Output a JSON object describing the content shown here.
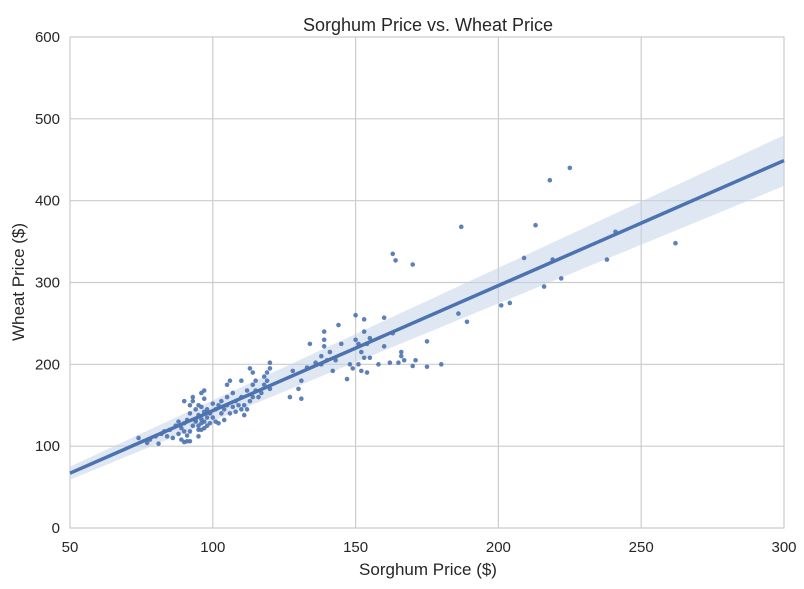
{
  "chart_data": {
    "type": "scatter",
    "title": "Sorghum Price vs. Wheat Price",
    "xlabel": "Sorghum Price ($)",
    "ylabel": "Wheat Price ($)",
    "xlim": [
      50,
      300
    ],
    "ylim": [
      0,
      600
    ],
    "xticks": [
      "50",
      "100",
      "150",
      "200",
      "250",
      "300"
    ],
    "yticks": [
      "0",
      "100",
      "200",
      "300",
      "400",
      "500",
      "600"
    ],
    "grid": true,
    "colors": {
      "points": "#4c72b0",
      "line": "#4c72b0",
      "band": "#c5d3ea",
      "grid": "#cccccc"
    },
    "points": [
      [
        74,
        110
      ],
      [
        77,
        104
      ],
      [
        78,
        108
      ],
      [
        80,
        112
      ],
      [
        81,
        103
      ],
      [
        82,
        115
      ],
      [
        83,
        118
      ],
      [
        84,
        112
      ],
      [
        85,
        120
      ],
      [
        86,
        110
      ],
      [
        87,
        125
      ],
      [
        88,
        115
      ],
      [
        88,
        130
      ],
      [
        89,
        108
      ],
      [
        89,
        122
      ],
      [
        90,
        105
      ],
      [
        90,
        118
      ],
      [
        90,
        128
      ],
      [
        90,
        155
      ],
      [
        91,
        106
      ],
      [
        91,
        113
      ],
      [
        91,
        132
      ],
      [
        92,
        106
      ],
      [
        92,
        118
      ],
      [
        92,
        140
      ],
      [
        92,
        150
      ],
      [
        93,
        125
      ],
      [
        93,
        155
      ],
      [
        93,
        160
      ],
      [
        94,
        132
      ],
      [
        94,
        145
      ],
      [
        94,
        130
      ],
      [
        95,
        112
      ],
      [
        95,
        120
      ],
      [
        95,
        125
      ],
      [
        95,
        138
      ],
      [
        95,
        150
      ],
      [
        96,
        120
      ],
      [
        96,
        128
      ],
      [
        96,
        133
      ],
      [
        96,
        148
      ],
      [
        96,
        165
      ],
      [
        97,
        122
      ],
      [
        97,
        130
      ],
      [
        97,
        142
      ],
      [
        97,
        158
      ],
      [
        97,
        168
      ],
      [
        98,
        125
      ],
      [
        98,
        135
      ],
      [
        98,
        145
      ],
      [
        99,
        128
      ],
      [
        99,
        140
      ],
      [
        100,
        135
      ],
      [
        100,
        152
      ],
      [
        101,
        130
      ],
      [
        101,
        145
      ],
      [
        102,
        128
      ],
      [
        102,
        150
      ],
      [
        103,
        140
      ],
      [
        103,
        155
      ],
      [
        104,
        132
      ],
      [
        104,
        145
      ],
      [
        105,
        150
      ],
      [
        105,
        160
      ],
      [
        105,
        175
      ],
      [
        106,
        140
      ],
      [
        106,
        180
      ],
      [
        107,
        148
      ],
      [
        107,
        165
      ],
      [
        108,
        142
      ],
      [
        108,
        155
      ],
      [
        109,
        150
      ],
      [
        110,
        145
      ],
      [
        110,
        160
      ],
      [
        110,
        180
      ],
      [
        111,
        138
      ],
      [
        111,
        150
      ],
      [
        112,
        145
      ],
      [
        112,
        168
      ],
      [
        113,
        155
      ],
      [
        113,
        195
      ],
      [
        114,
        160
      ],
      [
        114,
        175
      ],
      [
        114,
        190
      ],
      [
        115,
        168
      ],
      [
        115,
        180
      ],
      [
        116,
        160
      ],
      [
        117,
        165
      ],
      [
        118,
        185
      ],
      [
        118,
        175
      ],
      [
        119,
        180
      ],
      [
        119,
        190
      ],
      [
        120,
        195
      ],
      [
        120,
        202
      ],
      [
        120,
        170
      ],
      [
        127,
        160
      ],
      [
        128,
        192
      ],
      [
        130,
        170
      ],
      [
        131,
        180
      ],
      [
        131,
        158
      ],
      [
        133,
        196
      ],
      [
        134,
        225
      ],
      [
        136,
        202
      ],
      [
        138,
        200
      ],
      [
        138,
        210
      ],
      [
        139,
        222
      ],
      [
        139,
        230
      ],
      [
        139,
        240
      ],
      [
        140,
        205
      ],
      [
        141,
        215
      ],
      [
        142,
        192
      ],
      [
        143,
        205
      ],
      [
        144,
        248
      ],
      [
        145,
        225
      ],
      [
        147,
        182
      ],
      [
        148,
        200
      ],
      [
        149,
        195
      ],
      [
        150,
        260
      ],
      [
        150,
        230
      ],
      [
        151,
        200
      ],
      [
        151,
        225
      ],
      [
        152,
        192
      ],
      [
        152,
        215
      ],
      [
        153,
        208
      ],
      [
        153,
        240
      ],
      [
        153,
        255
      ],
      [
        154,
        225
      ],
      [
        154,
        190
      ],
      [
        155,
        208
      ],
      [
        155,
        232
      ],
      [
        158,
        200
      ],
      [
        160,
        222
      ],
      [
        160,
        257
      ],
      [
        162,
        202
      ],
      [
        163,
        238
      ],
      [
        163,
        335
      ],
      [
        164,
        327
      ],
      [
        165,
        202
      ],
      [
        166,
        215
      ],
      [
        166,
        210
      ],
      [
        167,
        205
      ],
      [
        170,
        198
      ],
      [
        170,
        322
      ],
      [
        171,
        205
      ],
      [
        175,
        197
      ],
      [
        175,
        228
      ],
      [
        180,
        200
      ],
      [
        186,
        262
      ],
      [
        187,
        368
      ],
      [
        189,
        252
      ],
      [
        201,
        272
      ],
      [
        204,
        275
      ],
      [
        209,
        330
      ],
      [
        213,
        370
      ],
      [
        216,
        295
      ],
      [
        218,
        425
      ],
      [
        219,
        328
      ],
      [
        222,
        305
      ],
      [
        225,
        440
      ],
      [
        238,
        328
      ],
      [
        241,
        362
      ],
      [
        262,
        348
      ]
    ],
    "fit_line": {
      "x": [
        50,
        300
      ],
      "y": [
        67,
        449
      ]
    },
    "confidence_band": {
      "x": [
        50,
        300
      ],
      "lower": [
        59,
        418
      ],
      "upper": [
        75,
        480
      ]
    }
  }
}
